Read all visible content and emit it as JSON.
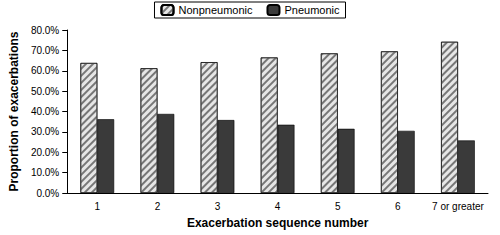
{
  "chart_data": {
    "type": "bar",
    "categories": [
      "1",
      "2",
      "3",
      "4",
      "5",
      "6",
      "7 or greater"
    ],
    "series": [
      {
        "name": "Nonpneumonic",
        "color": "#e6e6e6",
        "values": [
          63.8,
          61.2,
          64.2,
          66.5,
          68.5,
          69.5,
          74.2
        ]
      },
      {
        "name": "Pneumonic",
        "color": "#3a3a3a",
        "values": [
          36.2,
          38.8,
          35.8,
          33.5,
          31.5,
          30.5,
          25.8
        ]
      }
    ],
    "x_label": "Exacerbation sequence number",
    "y_label": "Proportion of exacerbations",
    "ylim": [
      0,
      80
    ],
    "yticks": [
      {
        "value": 0,
        "label": "0.0%"
      },
      {
        "value": 10,
        "label": "10.0%"
      },
      {
        "value": 20,
        "label": "20.0%"
      },
      {
        "value": 30,
        "label": "30.0%"
      },
      {
        "value": 40,
        "label": "40.0%"
      },
      {
        "value": 50,
        "label": "50.0%"
      },
      {
        "value": 60,
        "label": "60.0%"
      },
      {
        "value": 70,
        "label": "70.0%"
      },
      {
        "value": 80,
        "label": "80.0%"
      }
    ],
    "grid": false,
    "legend": "top"
  }
}
